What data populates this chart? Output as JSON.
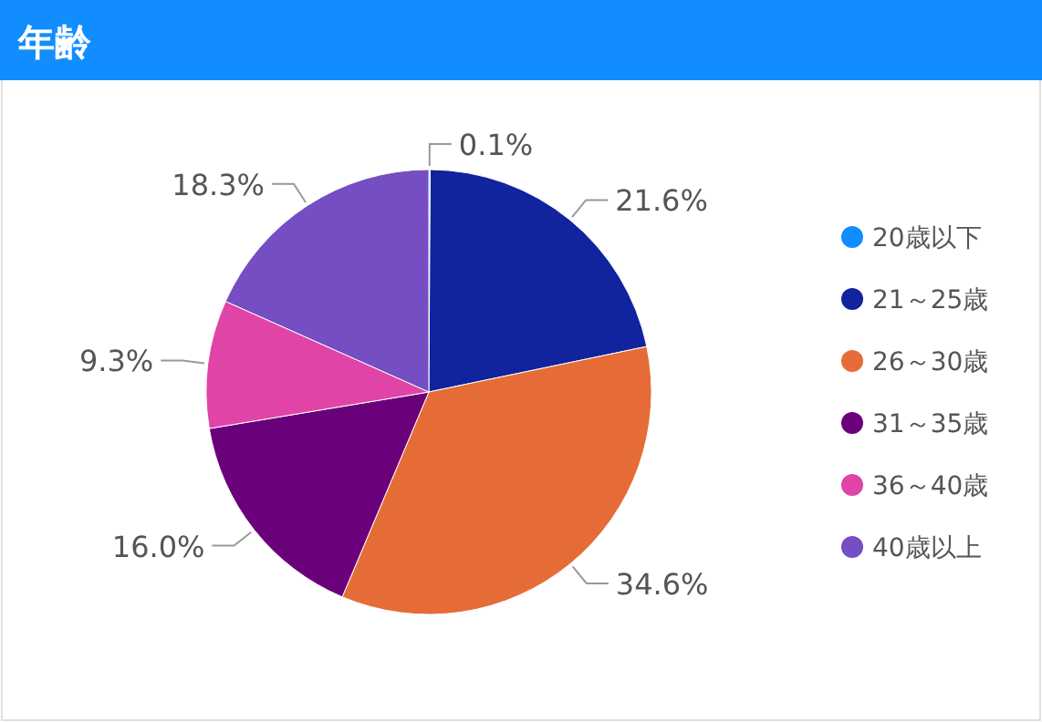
{
  "chart_data": {
    "type": "pie",
    "title": "年齢",
    "categories": [
      "20歳以下",
      "21～25歳",
      "26～30歳",
      "31～35歳",
      "36～40歳",
      "40歳以上"
    ],
    "values": [
      0.1,
      21.6,
      34.6,
      16.0,
      9.3,
      18.3
    ],
    "colors": [
      "#118dff",
      "#12239e",
      "#e66c37",
      "#6b007b",
      "#e044a7",
      "#744ec2"
    ],
    "value_labels": [
      "0.1%",
      "21.6%",
      "34.6%",
      "16.0%",
      "9.3%",
      "18.3%"
    ],
    "legend": "right"
  }
}
